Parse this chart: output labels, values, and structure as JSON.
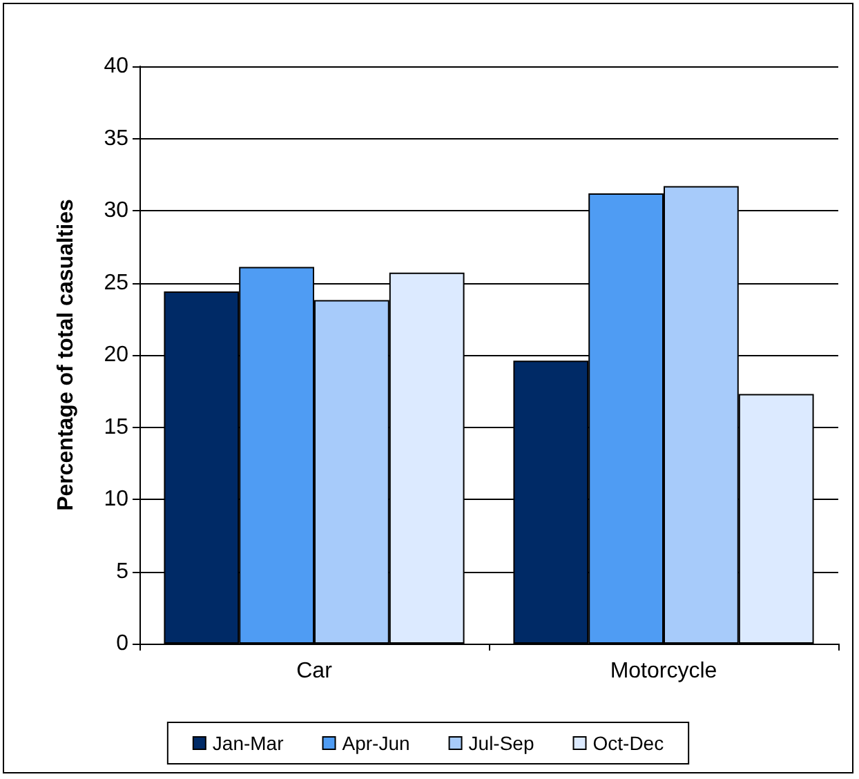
{
  "chart_data": {
    "type": "bar",
    "ylabel": "Percentage of total casualties",
    "categories": [
      "Car",
      "Motorcycle"
    ],
    "series": [
      {
        "name": "Jan-Mar",
        "color": "#002a66",
        "values": [
          24.4,
          19.6
        ]
      },
      {
        "name": "Apr-Jun",
        "color": "#4f9cf3",
        "values": [
          26.1,
          31.2
        ]
      },
      {
        "name": "Jul-Sep",
        "color": "#a7cbfa",
        "values": [
          23.8,
          31.7
        ]
      },
      {
        "name": "Oct-Dec",
        "color": "#dceaff",
        "values": [
          25.7,
          17.3
        ]
      }
    ],
    "ylim": [
      0,
      40
    ],
    "yticks": [
      0,
      5,
      10,
      15,
      20,
      25,
      30,
      35,
      40
    ],
    "grid": "y",
    "legend": "bottom"
  }
}
